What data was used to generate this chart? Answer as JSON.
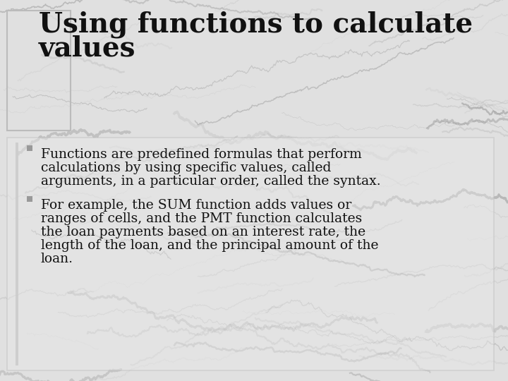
{
  "title_line1": "Using functions to calculate",
  "title_line2": "values",
  "bullet1_lines": [
    "Functions are predefined formulas that perform",
    "calculations by using specific values, called",
    "arguments, in a particular order, called the syntax."
  ],
  "bullet2_lines": [
    "For example, the SUM function adds values or",
    "ranges of cells, and the PMT function calculates",
    "the loan payments based on an interest rate, the",
    "length of the loan, and the principal amount of the",
    "loan."
  ],
  "title_fontsize": 28,
  "body_fontsize": 13.5,
  "text_color": "#111111",
  "bullet_color": "#888888",
  "bg_base": "#d8d8d8",
  "content_box_edge": "#c0c0c0",
  "title_bracket_color": "#cccccc",
  "left_bar_color": "#bbbbbb"
}
